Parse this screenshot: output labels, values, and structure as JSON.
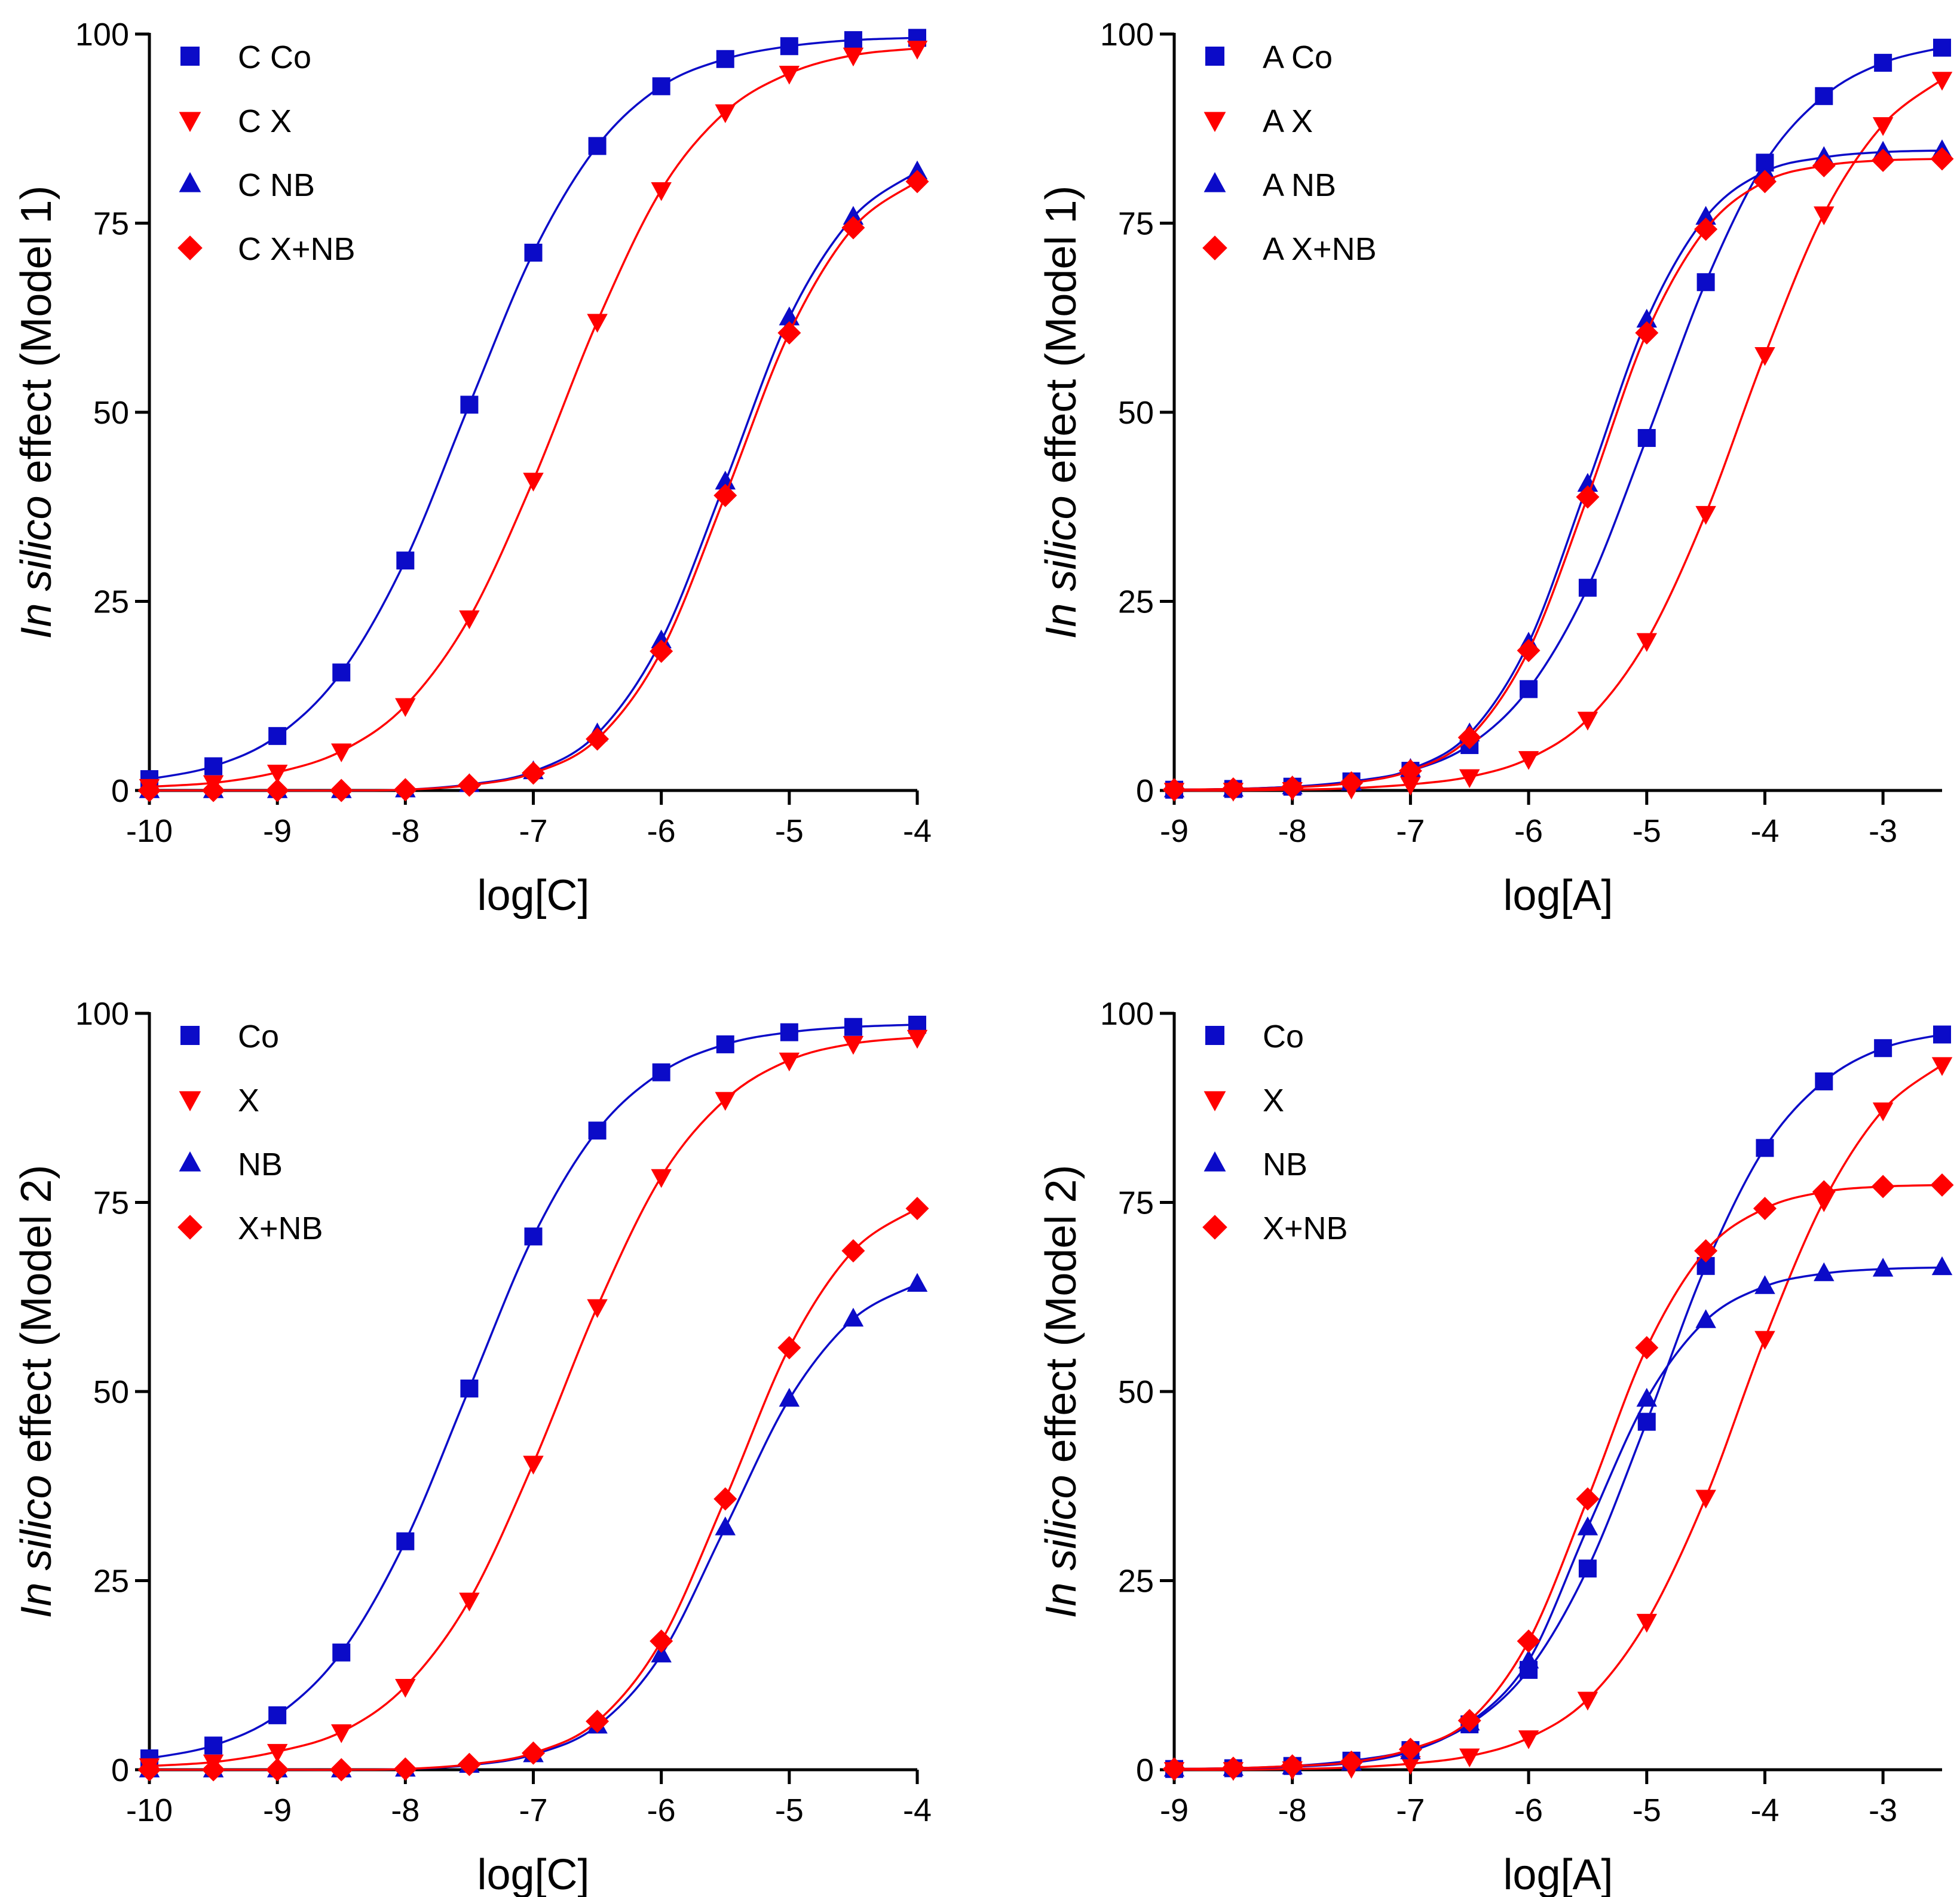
{
  "colors": {
    "blue": "#0b0bc8",
    "red": "#ff0000"
  },
  "chart_data": [
    {
      "type": "scatter",
      "panel": "top-left",
      "title": "",
      "xlabel": "log[C]",
      "ylabel": {
        "italic": "In silico",
        "rest": " effect (Model 1)"
      },
      "xlim": [
        -10,
        -4
      ],
      "ylim": [
        0,
        100
      ],
      "xticks": [
        -10,
        -9,
        -8,
        -7,
        -6,
        -5,
        -4
      ],
      "yticks": [
        0,
        25,
        50,
        75,
        100
      ],
      "legend_position": "top-left",
      "x": [
        -10,
        -9.5,
        -9,
        -8.5,
        -8,
        -7.5,
        -7,
        -6.5,
        -6,
        -5.5,
        -5,
        -4.5,
        -4
      ],
      "series": [
        {
          "name": "C Co",
          "marker": "square",
          "color": "blue",
          "values": [
            1.5,
            3.2,
            7.2,
            15.6,
            30.4,
            51,
            71.1,
            85.2,
            93.1,
            96.7,
            98.4,
            99.2,
            99.5
          ]
        },
        {
          "name": "C X",
          "marker": "triangle-down",
          "color": "red",
          "values": [
            0.5,
            1.0,
            2.4,
            5.2,
            11.2,
            22.8,
            41,
            62,
            79.4,
            89.7,
            94.8,
            97.2,
            98.1
          ]
        },
        {
          "name": "C NB",
          "marker": "triangle-up",
          "color": "blue",
          "values": [
            0,
            0,
            0,
            0,
            0.1,
            0.8,
            2.5,
            7.5,
            19.8,
            40.8,
            62.5,
            75.8,
            81.8
          ]
        },
        {
          "name": "C X+NB",
          "marker": "diamond",
          "color": "red",
          "values": [
            0,
            0,
            0,
            0,
            0.1,
            0.7,
            2.3,
            6.8,
            18.4,
            39,
            60.5,
            74.4,
            80.5
          ]
        }
      ]
    },
    {
      "type": "scatter",
      "panel": "top-right",
      "title": "",
      "xlabel": "log[A]",
      "ylabel": {
        "italic": "In silico",
        "rest": " effect (Model 1)"
      },
      "xlim": [
        -9,
        -2.5
      ],
      "ylim": [
        0,
        100
      ],
      "xticks": [
        -9,
        -8,
        -7,
        -6,
        -5,
        -4,
        -3
      ],
      "yticks": [
        0,
        25,
        50,
        75,
        100
      ],
      "legend_position": "top-left",
      "x": [
        -9,
        -8.5,
        -8,
        -7.5,
        -7,
        -6.5,
        -6,
        -5.5,
        -5,
        -4.5,
        -4,
        -3.5,
        -3,
        -2.5
      ],
      "series": [
        {
          "name": "A Co",
          "marker": "square",
          "color": "blue",
          "values": [
            0.1,
            0.2,
            0.5,
            1.2,
            2.6,
            6,
            13.4,
            26.8,
            46.6,
            67.2,
            83,
            91.8,
            96.2,
            98.2
          ]
        },
        {
          "name": "A X",
          "marker": "triangle-down",
          "color": "red",
          "values": [
            0,
            0,
            0.1,
            0.3,
            0.8,
            1.8,
            4.2,
            9.4,
            19.8,
            36.6,
            57.6,
            76.2,
            88,
            94
          ]
        },
        {
          "name": "A NB",
          "marker": "triangle-up",
          "color": "blue",
          "values": [
            0.1,
            0.2,
            0.5,
            1.0,
            2.8,
            7.5,
            19.5,
            40.5,
            62.2,
            75.8,
            81.8,
            83.7,
            84.4,
            84.6
          ]
        },
        {
          "name": "A X+NB",
          "marker": "diamond",
          "color": "red",
          "values": [
            0.1,
            0.2,
            0.4,
            1.0,
            2.6,
            7,
            18.5,
            38.8,
            60.5,
            74.2,
            80.5,
            82.6,
            83.3,
            83.5
          ]
        }
      ]
    },
    {
      "type": "scatter",
      "panel": "bottom-left",
      "title": "",
      "xlabel": "log[C]",
      "ylabel": {
        "italic": "In silico",
        "rest": " effect (Model 2)"
      },
      "xlim": [
        -10,
        -4
      ],
      "ylim": [
        0,
        100
      ],
      "xticks": [
        -10,
        -9,
        -8,
        -7,
        -6,
        -5,
        -4
      ],
      "yticks": [
        0,
        25,
        50,
        75,
        100
      ],
      "legend_position": "top-left",
      "x": [
        -10,
        -9.5,
        -9,
        -8.5,
        -8,
        -7.5,
        -7,
        -6.5,
        -6,
        -5.5,
        -5,
        -4.5,
        -4
      ],
      "series": [
        {
          "name": "Co",
          "marker": "square",
          "color": "blue",
          "values": [
            1.5,
            3.2,
            7.2,
            15.5,
            30.2,
            50.4,
            70.5,
            84.5,
            92.2,
            95.9,
            97.5,
            98.2,
            98.5
          ]
        },
        {
          "name": "X",
          "marker": "triangle-down",
          "color": "red",
          "values": [
            0.5,
            1.0,
            2.4,
            5.0,
            11,
            22.4,
            40.5,
            61.2,
            78.4,
            88.6,
            93.8,
            96,
            96.8
          ]
        },
        {
          "name": "NB",
          "marker": "triangle-up",
          "color": "blue",
          "values": [
            0,
            0,
            0,
            0,
            0.1,
            0.6,
            2.0,
            5.8,
            15.2,
            32,
            49,
            59.6,
            64.2
          ]
        },
        {
          "name": "X+NB",
          "marker": "diamond",
          "color": "red",
          "values": [
            0,
            0,
            0,
            0,
            0.1,
            0.7,
            2.2,
            6.4,
            17,
            35.8,
            55.8,
            68.6,
            74.2
          ]
        }
      ]
    },
    {
      "type": "scatter",
      "panel": "bottom-right",
      "title": "",
      "xlabel": "log[A]",
      "ylabel": {
        "italic": "In silico",
        "rest": " effect (Model 2)"
      },
      "xlim": [
        -9,
        -2.5
      ],
      "ylim": [
        0,
        100
      ],
      "xticks": [
        -9,
        -8,
        -7,
        -6,
        -5,
        -4,
        -3
      ],
      "yticks": [
        0,
        25,
        50,
        75,
        100
      ],
      "legend_position": "top-left",
      "x": [
        -9,
        -8.5,
        -8,
        -7.5,
        -7,
        -6.5,
        -6,
        -5.5,
        -5,
        -4.5,
        -4,
        -3.5,
        -3,
        -2.5
      ],
      "series": [
        {
          "name": "Co",
          "marker": "square",
          "color": "blue",
          "values": [
            0.1,
            0.2,
            0.5,
            1.2,
            2.6,
            6,
            13.2,
            26.6,
            46,
            66.6,
            82.2,
            91,
            95.4,
            97.2
          ]
        },
        {
          "name": "X",
          "marker": "triangle-down",
          "color": "red",
          "values": [
            0,
            0,
            0.1,
            0.3,
            0.8,
            1.8,
            4.2,
            9.3,
            19.6,
            36,
            57,
            75.2,
            87.2,
            93.2
          ]
        },
        {
          "name": "NB",
          "marker": "triangle-up",
          "color": "blue",
          "values": [
            0.1,
            0.2,
            0.4,
            0.9,
            2.4,
            6.2,
            14.4,
            32,
            49,
            59.4,
            63.9,
            65.6,
            66.2,
            66.4
          ]
        },
        {
          "name": "X+NB",
          "marker": "diamond",
          "color": "red",
          "values": [
            0.1,
            0.2,
            0.5,
            1.0,
            2.7,
            6.5,
            17,
            35.8,
            55.8,
            68.6,
            74.2,
            76.4,
            77.1,
            77.3
          ]
        }
      ]
    }
  ]
}
